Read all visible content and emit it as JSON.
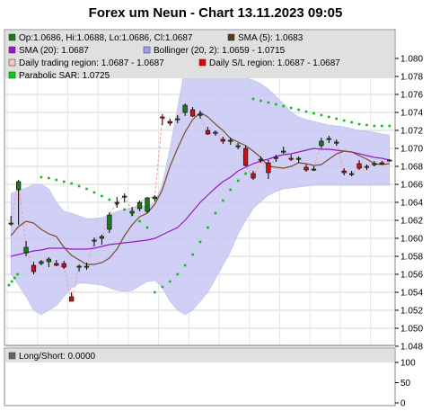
{
  "chart_data": {
    "type": "candlestick",
    "title": "Forex um Neun - Chart 13.11.2023 09:05",
    "ylim": [
      1.048,
      1.081
    ],
    "yticks": [
      "1.080",
      "1.078",
      "1.076",
      "1.074",
      "1.072",
      "1.070",
      "1.068",
      "1.066",
      "1.064",
      "1.062",
      "1.060",
      "1.058",
      "1.056",
      "1.054",
      "1.052",
      "1.050",
      "1.048"
    ],
    "legend": {
      "ohlc": "Op:1.0686, Hi:1.0688, Lo:1.0686, Cl:1.0687",
      "sma5": "SMA (5): 1.0683",
      "sma20": "SMA (20): 1.0687",
      "bollinger": "Bollinger (20, 2): 1.0659 - 1.0715",
      "trading_region": "Daily trading region: 1.0687 - 1.0687",
      "sl_region": "Daily S/L region: 1.0687 - 1.0687",
      "sar": "Parabolic SAR: 1.0725"
    },
    "colors": {
      "up": "#1a7a1a",
      "down": "#c81414",
      "sma5": "#7a4a2a",
      "sma20": "#9a16c8",
      "band": "#c8c8f4",
      "sar": "#12b81e",
      "sl": "#f0a0a0",
      "panel_bg": "#e0e0e0"
    },
    "candles": [
      {
        "o": 1.0617,
        "h": 1.0625,
        "l": 1.0614,
        "c": 1.0617
      },
      {
        "o": 1.0654,
        "h": 1.0665,
        "l": 1.0615,
        "c": 1.0663
      },
      {
        "o": 1.0584,
        "h": 1.0597,
        "l": 1.058,
        "c": 1.059
      },
      {
        "o": 1.057,
        "h": 1.0574,
        "l": 1.056,
        "c": 1.0563
      },
      {
        "o": 1.0572,
        "h": 1.0576,
        "l": 1.057,
        "c": 1.0574
      },
      {
        "o": 1.0574,
        "h": 1.0579,
        "l": 1.0568,
        "c": 1.0577
      },
      {
        "o": 1.0572,
        "h": 1.0576,
        "l": 1.0569,
        "c": 1.057
      },
      {
        "o": 1.0572,
        "h": 1.0575,
        "l": 1.0566,
        "c": 1.0568
      },
      {
        "o": 1.0535,
        "h": 1.054,
        "l": 1.053,
        "c": 1.053
      },
      {
        "o": 1.0568,
        "h": 1.0571,
        "l": 1.0563,
        "c": 1.0569
      },
      {
        "o": 1.0569,
        "h": 1.0573,
        "l": 1.0565,
        "c": 1.0569
      },
      {
        "o": 1.0598,
        "h": 1.0601,
        "l": 1.0591,
        "c": 1.0598
      },
      {
        "o": 1.06,
        "h": 1.0604,
        "l": 1.0593,
        "c": 1.0602
      },
      {
        "o": 1.061,
        "h": 1.0629,
        "l": 1.0606,
        "c": 1.0626
      },
      {
        "o": 1.064,
        "h": 1.0646,
        "l": 1.0634,
        "c": 1.064
      },
      {
        "o": 1.0646,
        "h": 1.065,
        "l": 1.064,
        "c": 1.0647
      },
      {
        "o": 1.0628,
        "h": 1.0635,
        "l": 1.0625,
        "c": 1.063
      },
      {
        "o": 1.0633,
        "h": 1.0642,
        "l": 1.063,
        "c": 1.064
      },
      {
        "o": 1.063,
        "h": 1.0646,
        "l": 1.0628,
        "c": 1.0645
      },
      {
        "o": 1.0644,
        "h": 1.0648,
        "l": 1.0641,
        "c": 1.0646
      },
      {
        "o": 1.0735,
        "h": 1.0738,
        "l": 1.0726,
        "c": 1.0734
      },
      {
        "o": 1.073,
        "h": 1.0733,
        "l": 1.0725,
        "c": 1.0728
      },
      {
        "o": 1.0733,
        "h": 1.0737,
        "l": 1.0728,
        "c": 1.0733
      },
      {
        "o": 1.074,
        "h": 1.075,
        "l": 1.0736,
        "c": 1.0748
      },
      {
        "o": 1.0743,
        "h": 1.0746,
        "l": 1.0735,
        "c": 1.0736
      },
      {
        "o": 1.0738,
        "h": 1.0742,
        "l": 1.0733,
        "c": 1.0738
      },
      {
        "o": 1.072,
        "h": 1.0724,
        "l": 1.0715,
        "c": 1.0716
      },
      {
        "o": 1.0717,
        "h": 1.072,
        "l": 1.0714,
        "c": 1.0718
      },
      {
        "o": 1.071,
        "h": 1.0713,
        "l": 1.0705,
        "c": 1.0708
      },
      {
        "o": 1.0708,
        "h": 1.0712,
        "l": 1.0704,
        "c": 1.0709
      },
      {
        "o": 1.0703,
        "h": 1.0706,
        "l": 1.0699,
        "c": 1.0703
      },
      {
        "o": 1.07,
        "h": 1.0703,
        "l": 1.068,
        "c": 1.0681
      },
      {
        "o": 1.0672,
        "h": 1.0675,
        "l": 1.0665,
        "c": 1.0667
      },
      {
        "o": 1.0688,
        "h": 1.0691,
        "l": 1.0684,
        "c": 1.0688
      },
      {
        "o": 1.0684,
        "h": 1.0687,
        "l": 1.0666,
        "c": 1.0673
      },
      {
        "o": 1.0689,
        "h": 1.0693,
        "l": 1.0685,
        "c": 1.069
      },
      {
        "o": 1.0697,
        "h": 1.0702,
        "l": 1.0694,
        "c": 1.0697
      },
      {
        "o": 1.0689,
        "h": 1.0693,
        "l": 1.0686,
        "c": 1.0688
      },
      {
        "o": 1.0688,
        "h": 1.0691,
        "l": 1.0684,
        "c": 1.0689
      },
      {
        "o": 1.0679,
        "h": 1.0682,
        "l": 1.0674,
        "c": 1.0676
      },
      {
        "o": 1.0676,
        "h": 1.068,
        "l": 1.0675,
        "c": 1.0677
      },
      {
        "o": 1.0703,
        "h": 1.0712,
        "l": 1.07,
        "c": 1.0708
      },
      {
        "o": 1.071,
        "h": 1.0714,
        "l": 1.0706,
        "c": 1.0711
      },
      {
        "o": 1.0707,
        "h": 1.071,
        "l": 1.0703,
        "c": 1.0707
      },
      {
        "o": 1.0675,
        "h": 1.0678,
        "l": 1.067,
        "c": 1.0673
      },
      {
        "o": 1.0672,
        "h": 1.0675,
        "l": 1.0669,
        "c": 1.0672
      },
      {
        "o": 1.0683,
        "h": 1.0687,
        "l": 1.0676,
        "c": 1.0678
      },
      {
        "o": 1.0679,
        "h": 1.0682,
        "l": 1.0676,
        "c": 1.068
      },
      {
        "o": 1.0683,
        "h": 1.0686,
        "l": 1.068,
        "c": 1.0683
      },
      {
        "o": 1.0684,
        "h": 1.0686,
        "l": 1.0682,
        "c": 1.0684
      },
      {
        "o": 1.0686,
        "h": 1.0688,
        "l": 1.0686,
        "c": 1.0687
      }
    ],
    "sma5": [
      1.0603,
      1.0613,
      1.0619,
      1.0617,
      1.061,
      1.0605,
      1.0602,
      1.059,
      1.0581,
      1.0576,
      1.0571,
      1.0571,
      1.0573,
      1.0578,
      1.0588,
      1.0603,
      1.0615,
      1.0624,
      1.0628,
      1.0638,
      1.0654,
      1.068,
      1.07,
      1.0718,
      1.0732,
      1.074,
      1.0735,
      1.0727,
      1.072,
      1.0711,
      1.0707,
      1.0703,
      1.0697,
      1.069,
      1.068,
      1.0679,
      1.0678,
      1.068,
      1.0684,
      1.0683,
      1.0681,
      1.0682,
      1.0688,
      1.0694,
      1.0697,
      1.0696,
      1.0692,
      1.0688,
      1.0683,
      1.0682,
      1.0683
    ],
    "sma20": [
      1.058,
      1.0582,
      1.0584,
      1.0586,
      1.0587,
      1.0589,
      1.0589,
      1.0589,
      1.0588,
      1.0588,
      1.0588,
      1.0589,
      1.0591,
      1.0593,
      1.0594,
      1.0595,
      1.0596,
      1.0597,
      1.0598,
      1.06,
      1.0604,
      1.0608,
      1.0612,
      1.062,
      1.063,
      1.064,
      1.0648,
      1.0656,
      1.0663,
      1.0668,
      1.0675,
      1.0679,
      1.0683,
      1.0686,
      1.0688,
      1.0691,
      1.0693,
      1.0694,
      1.0696,
      1.0698,
      1.07,
      1.0699,
      1.0699,
      1.0698,
      1.0697,
      1.0696,
      1.0694,
      1.0692,
      1.069,
      1.0689,
      1.0687
    ],
    "bb_upper": [
      1.065,
      1.0653,
      1.0656,
      1.066,
      1.066,
      1.0655,
      1.064,
      1.063,
      1.0628,
      1.0625,
      1.0622,
      1.0622,
      1.0623,
      1.0626,
      1.063,
      1.0632,
      1.0634,
      1.0636,
      1.0636,
      1.064,
      1.066,
      1.07,
      1.0745,
      1.079,
      1.079,
      1.079,
      1.079,
      1.079,
      1.0788,
      1.0784,
      1.078,
      1.0778,
      1.0776,
      1.0772,
      1.0766,
      1.0758,
      1.075,
      1.074,
      1.0735,
      1.0732,
      1.073,
      1.0728,
      1.0726,
      1.0725,
      1.0724,
      1.0722,
      1.072,
      1.0719,
      1.0718,
      1.0716,
      1.0715
    ],
    "bb_lower": [
      1.056,
      1.0548,
      1.0535,
      1.052,
      1.0515,
      1.052,
      1.0525,
      1.0535,
      1.0545,
      1.055,
      1.055,
      1.0549,
      1.0548,
      1.0545,
      1.0542,
      1.0541,
      1.0542,
      1.0547,
      1.0552,
      1.0553,
      1.0545,
      1.053,
      1.052,
      1.0515,
      1.052,
      1.053,
      1.054,
      1.0555,
      1.057,
      1.0585,
      1.0605,
      1.062,
      1.0633,
      1.0641,
      1.0648,
      1.0652,
      1.0655,
      1.0656,
      1.0657,
      1.0658,
      1.0659,
      1.0659,
      1.0659,
      1.0659,
      1.0659,
      1.0659,
      1.0659,
      1.0659,
      1.0659,
      1.0659,
      1.0659
    ],
    "sar": [
      null,
      null,
      null,
      null,
      1.0668,
      1.0667,
      1.0665,
      1.0663,
      1.0661,
      1.0658,
      1.0655,
      1.0651,
      1.0647,
      1.0643,
      1.0638,
      1.0632,
      1.0626,
      1.0619,
      1.0612,
      1.054,
      1.0546,
      1.0552,
      1.056,
      1.057,
      1.0582,
      1.0596,
      1.0612,
      1.0628,
      1.0642,
      1.0654,
      1.0664,
      1.0672,
      1.0755,
      1.0753,
      1.0751,
      1.0749,
      1.0747,
      1.0745,
      1.0743,
      1.0741,
      1.0739,
      1.0737,
      1.0735,
      1.0733,
      1.0731,
      1.0729,
      1.0727,
      1.0726,
      1.0725,
      1.0725,
      1.0725
    ],
    "sar_pre": [
      1.0548,
      1.0552,
      1.0556,
      1.056
    ],
    "lower_panel": {
      "label": "Long/Short: 0.0000",
      "yticks": [
        "100",
        "50",
        "0"
      ],
      "ylim": [
        0,
        100
      ]
    }
  }
}
